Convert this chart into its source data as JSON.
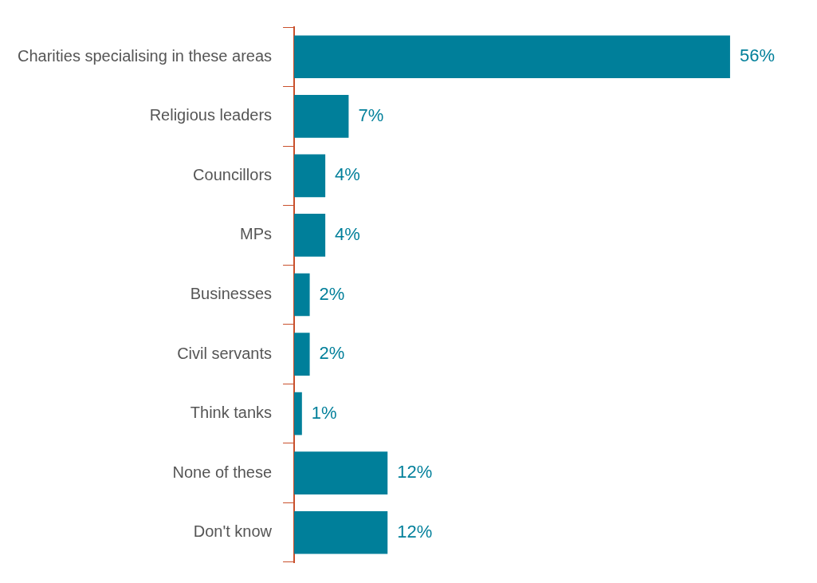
{
  "chart_data": {
    "type": "bar",
    "orientation": "horizontal",
    "categories": [
      "Charities specialising in these areas",
      "Religious leaders",
      "Councillors",
      "MPs",
      "Businesses",
      "Civil servants",
      "Think tanks",
      "None of these",
      "Don't know"
    ],
    "values": [
      56,
      7,
      4,
      4,
      2,
      2,
      1,
      12,
      12
    ],
    "value_labels": [
      "56%",
      "7%",
      "4%",
      "4%",
      "2%",
      "2%",
      "1%",
      "12%",
      "12%"
    ],
    "color": "#007f9a",
    "legend": false,
    "grid": false
  }
}
